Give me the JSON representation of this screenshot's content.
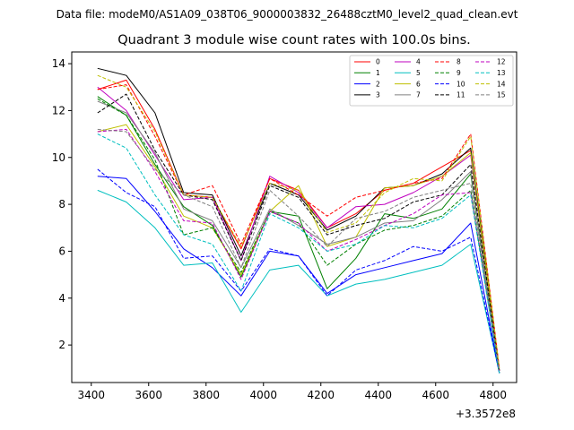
{
  "chart_data": {
    "type": "line",
    "suptitle": "Data file: modeM0/AS1A09_038T06_9000003832_26488cztM0_level2_quad_clean.evt",
    "title": "Quadrant 3 module wise count rates with 100.0s bins.",
    "xlabel": "",
    "ylabel": "",
    "x_offset_label": "+3.3572e8",
    "x": [
      3422,
      3522,
      3622,
      3722,
      3822,
      3922,
      4022,
      4122,
      4222,
      4322,
      4422,
      4522,
      4622,
      4722,
      4822
    ],
    "xlim": [
      3332,
      4882
    ],
    "ylim": [
      0.4,
      14.5
    ],
    "xticks": [
      3400,
      3600,
      3800,
      4000,
      4200,
      4400,
      4600,
      4800
    ],
    "xtick_labels": [
      "3400",
      "3600",
      "3800",
      "4000",
      "4200",
      "4400",
      "4600",
      "4800"
    ],
    "yticks": [
      2,
      4,
      6,
      8,
      10,
      12,
      14
    ],
    "ytick_labels": [
      "2",
      "4",
      "6",
      "8",
      "10",
      "12",
      "14"
    ],
    "grid": false,
    "legend_position": "top-right",
    "legend_columns": 4,
    "series": [
      {
        "name": "0",
        "color": "#ff0000",
        "dash": false,
        "values": [
          12.9,
          13.3,
          11.2,
          8.4,
          8.3,
          6.1,
          9.1,
          8.6,
          7.0,
          7.6,
          8.6,
          8.9,
          9.6,
          10.3,
          0.9
        ]
      },
      {
        "name": "1",
        "color": "#008000",
        "dash": false,
        "values": [
          12.6,
          11.8,
          9.7,
          7.9,
          7.1,
          4.9,
          7.7,
          7.5,
          4.4,
          5.7,
          7.6,
          7.4,
          7.8,
          9.3,
          0.8
        ]
      },
      {
        "name": "2",
        "color": "#0000ff",
        "dash": false,
        "values": [
          9.2,
          9.1,
          7.7,
          6.1,
          5.3,
          4.1,
          6.0,
          5.8,
          4.2,
          5.0,
          5.3,
          5.6,
          5.9,
          7.2,
          0.8
        ]
      },
      {
        "name": "3",
        "color": "#000000",
        "dash": false,
        "values": [
          13.8,
          13.5,
          11.9,
          8.5,
          8.4,
          5.8,
          8.9,
          8.4,
          6.9,
          7.5,
          8.7,
          8.8,
          9.3,
          10.4,
          0.9
        ]
      },
      {
        "name": "4",
        "color": "#bf00bf",
        "dash": false,
        "values": [
          13.0,
          12.0,
          10.1,
          8.2,
          8.3,
          5.6,
          9.2,
          8.5,
          7.0,
          7.9,
          8.0,
          8.5,
          9.2,
          10.1,
          0.9
        ]
      },
      {
        "name": "5",
        "color": "#00bfbf",
        "dash": false,
        "values": [
          8.6,
          8.1,
          7.0,
          5.4,
          5.5,
          3.4,
          5.2,
          5.4,
          4.1,
          4.6,
          4.8,
          5.1,
          5.4,
          6.3,
          0.8
        ]
      },
      {
        "name": "6",
        "color": "#bfbf00",
        "dash": false,
        "values": [
          11.1,
          11.4,
          9.6,
          7.5,
          7.0,
          5.0,
          7.7,
          8.8,
          6.2,
          6.6,
          8.7,
          8.8,
          9.2,
          10.2,
          0.9
        ]
      },
      {
        "name": "7",
        "color": "#808080",
        "dash": false,
        "values": [
          12.4,
          11.9,
          10.2,
          7.8,
          7.3,
          5.3,
          7.8,
          7.1,
          6.3,
          6.6,
          7.2,
          7.3,
          8.2,
          9.4,
          0.9
        ]
      },
      {
        "name": "8",
        "color": "#ff0000",
        "dash": true,
        "values": [
          12.9,
          13.1,
          10.9,
          8.4,
          8.8,
          6.3,
          9.1,
          8.4,
          7.5,
          8.3,
          8.6,
          8.9,
          9.1,
          11.0,
          1.0
        ]
      },
      {
        "name": "9",
        "color": "#008000",
        "dash": true,
        "values": [
          12.5,
          11.8,
          9.9,
          6.7,
          7.0,
          5.1,
          7.7,
          7.2,
          5.4,
          6.3,
          6.9,
          7.1,
          7.5,
          8.6,
          0.8
        ]
      },
      {
        "name": "10",
        "color": "#0000ff",
        "dash": true,
        "values": [
          9.5,
          8.5,
          7.9,
          5.7,
          5.8,
          4.3,
          6.1,
          5.8,
          4.1,
          5.2,
          5.6,
          6.2,
          6.0,
          6.6,
          0.8
        ]
      },
      {
        "name": "11",
        "color": "#000000",
        "dash": true,
        "values": [
          11.9,
          12.7,
          10.3,
          8.4,
          8.2,
          5.6,
          8.8,
          8.3,
          6.7,
          7.1,
          7.4,
          8.1,
          8.4,
          9.7,
          0.9
        ]
      },
      {
        "name": "12",
        "color": "#bf00bf",
        "dash": true,
        "values": [
          11.1,
          11.2,
          9.4,
          7.3,
          7.2,
          4.8,
          7.7,
          7.2,
          6.0,
          6.5,
          7.1,
          7.6,
          8.4,
          8.5,
          0.9
        ]
      },
      {
        "name": "13",
        "color": "#00bfbf",
        "dash": true,
        "values": [
          11.0,
          10.4,
          8.4,
          6.7,
          6.3,
          4.3,
          7.6,
          7.0,
          6.0,
          6.3,
          7.1,
          7.0,
          7.4,
          8.4,
          0.8
        ]
      },
      {
        "name": "14",
        "color": "#bfbf00",
        "dash": true,
        "values": [
          13.5,
          13.0,
          11.1,
          8.4,
          8.3,
          6.2,
          8.9,
          8.6,
          6.8,
          7.2,
          8.5,
          9.1,
          9.0,
          10.9,
          1.0
        ]
      },
      {
        "name": "15",
        "color": "#808080",
        "dash": true,
        "values": [
          11.2,
          11.1,
          9.5,
          8.4,
          7.9,
          5.3,
          8.6,
          7.5,
          6.2,
          7.4,
          7.7,
          8.3,
          8.6,
          8.9,
          0.9
        ]
      }
    ]
  }
}
